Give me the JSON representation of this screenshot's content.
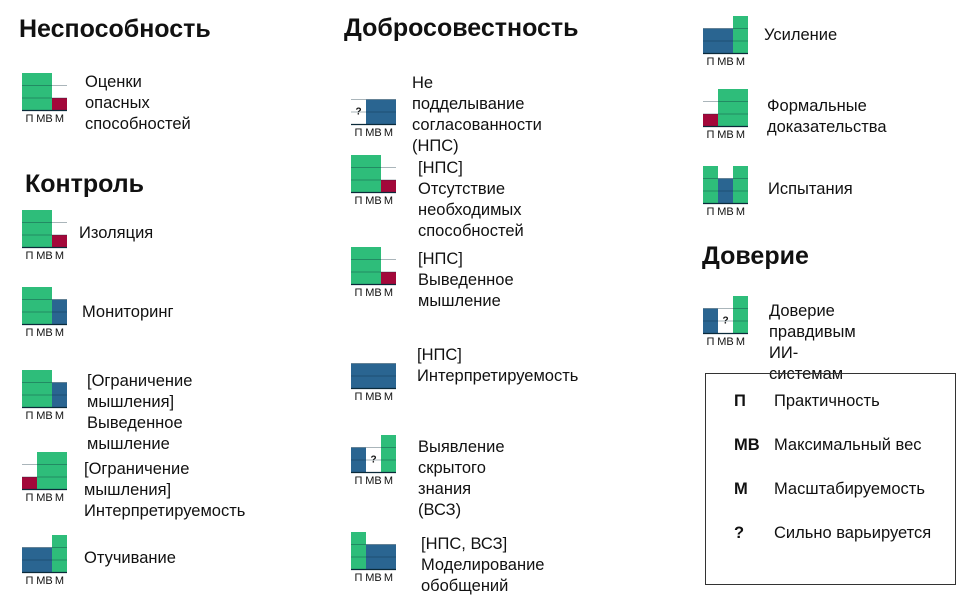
{
  "colors": {
    "green": "#2ebd7a",
    "blue": "#2a6591",
    "red": "#a3083a",
    "line": "#0b2a3a"
  },
  "ticks": [
    "П",
    "МВ",
    "М"
  ],
  "sections": [
    {
      "title": "Неспособность",
      "items": [
        {
          "label": "Оценки опасных\nспособностей",
          "chart": {
            "levels": [
              3,
              3,
              1
            ],
            "colors": [
              "green",
              "green",
              "red"
            ]
          }
        }
      ]
    },
    {
      "title": "Контроль",
      "items": [
        {
          "label": "Изоляция",
          "chart": {
            "levels": [
              3,
              3,
              1
            ],
            "colors": [
              "green",
              "green",
              "red"
            ]
          }
        },
        {
          "label": "Мониторинг",
          "chart": {
            "levels": [
              3,
              3,
              2
            ],
            "colors": [
              "green",
              "green",
              "blue"
            ]
          }
        },
        {
          "label": "[Ограничение мышления]\nВыведенное мышление",
          "chart": {
            "levels": [
              3,
              3,
              2
            ],
            "colors": [
              "green",
              "green",
              "blue"
            ]
          }
        },
        {
          "label": "[Ограничение мышления]\nИнтерпретируемость",
          "chart": {
            "levels": [
              1,
              3,
              3
            ],
            "colors": [
              "red",
              "green",
              "green"
            ]
          }
        },
        {
          "label": "Отучивание",
          "chart": {
            "levels": [
              2,
              2,
              3
            ],
            "colors": [
              "blue",
              "blue",
              "green"
            ]
          }
        }
      ]
    },
    {
      "title": "Добросовестность",
      "items": [
        {
          "label": "Не подделывание\nсогласованности\n(НПС)",
          "chart": {
            "levels": [
              0,
              2,
              2
            ],
            "colors": [
              "none",
              "blue",
              "blue"
            ],
            "unknown": [
              0
            ]
          }
        },
        {
          "label": "[НПС] Отсутствие\nнеобходимых способностей",
          "chart": {
            "levels": [
              3,
              3,
              1
            ],
            "colors": [
              "green",
              "green",
              "red"
            ]
          }
        },
        {
          "label": "[НПС] Выведенное\nмышление",
          "chart": {
            "levels": [
              3,
              3,
              1
            ],
            "colors": [
              "green",
              "green",
              "red"
            ]
          }
        },
        {
          "label": "[НПС]\nИнтерпретируемость",
          "chart": {
            "levels": [
              2,
              2,
              2
            ],
            "colors": [
              "blue",
              "blue",
              "blue"
            ]
          }
        },
        {
          "label": "Выявление скрытого\nзнания\n(ВСЗ)",
          "chart": {
            "levels": [
              2,
              0,
              3
            ],
            "colors": [
              "blue",
              "none",
              "green"
            ],
            "unknown": [
              1
            ]
          }
        },
        {
          "label": "[НПС, ВСЗ] Моделирование\nобобщений",
          "chart": {
            "levels": [
              3,
              2,
              2
            ],
            "colors": [
              "green",
              "blue",
              "blue"
            ]
          }
        }
      ]
    },
    {
      "title": "",
      "items": [
        {
          "label": "Усиление",
          "chart": {
            "levels": [
              2,
              2,
              3
            ],
            "colors": [
              "blue",
              "blue",
              "green"
            ]
          }
        },
        {
          "label": "Формальные\nдоказательства",
          "chart": {
            "levels": [
              1,
              3,
              3
            ],
            "colors": [
              "red",
              "green",
              "green"
            ]
          }
        },
        {
          "label": "Испытания",
          "chart": {
            "levels": [
              3,
              2,
              3
            ],
            "colors": [
              "green",
              "blue",
              "green"
            ]
          }
        }
      ]
    },
    {
      "title": "Доверие",
      "items": [
        {
          "label": "Доверие правдивым\nИИ-системам",
          "chart": {
            "levels": [
              2,
              0,
              3
            ],
            "colors": [
              "blue",
              "none",
              "green"
            ],
            "unknown": [
              1
            ]
          }
        }
      ]
    }
  ],
  "legend": [
    {
      "key": "П",
      "desc": "Практичность"
    },
    {
      "key": "МВ",
      "desc": "Максимальный вес"
    },
    {
      "key": "М",
      "desc": "Масштабируемость"
    },
    {
      "key": "?",
      "desc": "Сильно варьируется"
    }
  ]
}
